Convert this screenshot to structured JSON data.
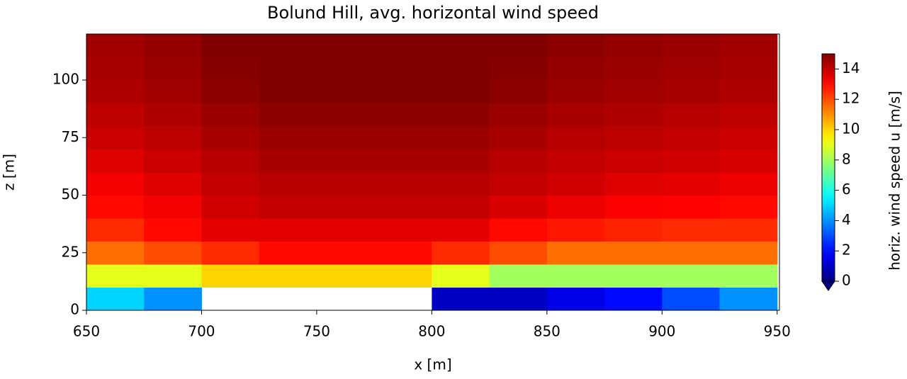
{
  "chart_data": {
    "type": "heatmap",
    "title": "Bolund Hill, avg. horizontal wind speed",
    "x_label": "x [m]",
    "y_label": "z [m]",
    "colorbar_label": "horiz. wind speed u [m/s]",
    "colormap": "jet",
    "clim": [
      0,
      15
    ],
    "colorbar_extend": "min",
    "x_bins": [
      650,
      675,
      700,
      725,
      750,
      775,
      800,
      825,
      850,
      875,
      900,
      925,
      950
    ],
    "y_bins": [
      0,
      10,
      20,
      30,
      40,
      50,
      60,
      70,
      80,
      90,
      100,
      110,
      120
    ],
    "values": [
      [
        5,
        4,
        null,
        null,
        null,
        null,
        1,
        1,
        1.5,
        2,
        3,
        4
      ],
      [
        9,
        9,
        10,
        10,
        10,
        10,
        9,
        8,
        8,
        8,
        8,
        8
      ],
      [
        11.5,
        12,
        12.5,
        13,
        13,
        13,
        12.5,
        12,
        11.5,
        11.5,
        11.5,
        11.5
      ],
      [
        12.5,
        13,
        13.5,
        13.5,
        13.5,
        13.5,
        13.5,
        13,
        12.8,
        12.6,
        12.5,
        12.5
      ],
      [
        13,
        13.3,
        13.8,
        14,
        14,
        14,
        14,
        13.7,
        13.4,
        13.2,
        13.1,
        13
      ],
      [
        13.3,
        13.6,
        14,
        14.2,
        14.2,
        14.2,
        14.2,
        14,
        13.8,
        13.6,
        13.5,
        13.4
      ],
      [
        13.6,
        13.9,
        14.2,
        14.4,
        14.4,
        14.4,
        14.4,
        14.2,
        14,
        13.9,
        13.8,
        13.7
      ],
      [
        13.9,
        14.1,
        14.4,
        14.6,
        14.6,
        14.6,
        14.6,
        14.4,
        14.2,
        14.1,
        14,
        13.9
      ],
      [
        14.1,
        14.3,
        14.6,
        14.8,
        14.8,
        14.8,
        14.8,
        14.6,
        14.4,
        14.3,
        14.2,
        14.1
      ],
      [
        14.3,
        14.5,
        14.8,
        15,
        15,
        15,
        15,
        14.8,
        14.6,
        14.5,
        14.4,
        14.3
      ],
      [
        14.4,
        14.6,
        14.9,
        15.1,
        15.1,
        15.1,
        15.1,
        14.9,
        14.7,
        14.6,
        14.5,
        14.4
      ],
      [
        14.5,
        14.7,
        15,
        15.2,
        15.2,
        15.2,
        15.2,
        15,
        14.8,
        14.7,
        14.6,
        14.5
      ]
    ],
    "xlim": [
      650,
      951
    ],
    "ylim": [
      0,
      120
    ],
    "xticks": [
      650,
      700,
      750,
      800,
      850,
      900,
      950
    ],
    "yticks": [
      0,
      25,
      50,
      75,
      100
    ],
    "colorbar_ticks": [
      0,
      2,
      4,
      6,
      8,
      10,
      12,
      14
    ]
  }
}
